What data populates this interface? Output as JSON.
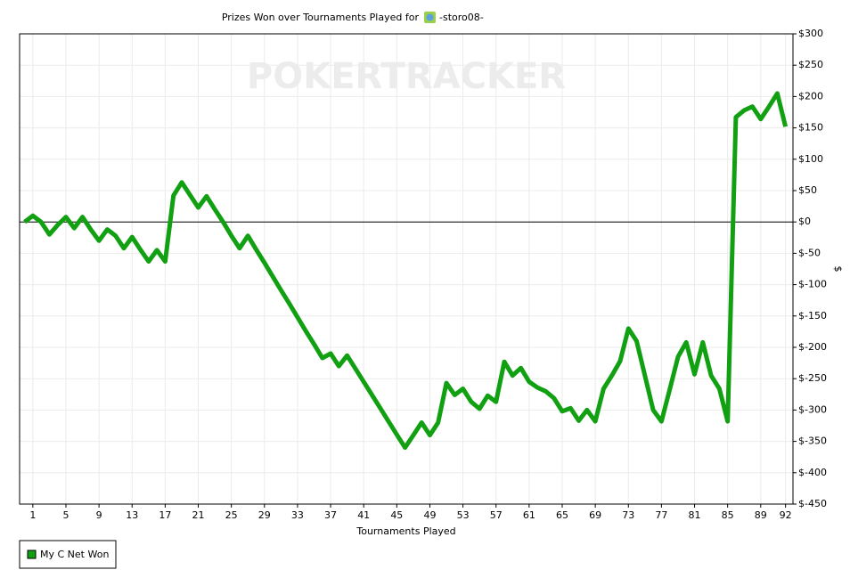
{
  "chart_data": {
    "type": "line",
    "title": "Prizes Won over Tournaments Played for",
    "player_name": "-storo08-",
    "watermark": "POKERTRACKER",
    "x_label": "Tournaments Played",
    "y_label": "$",
    "x": [
      0,
      1,
      2,
      3,
      4,
      5,
      6,
      7,
      8,
      9,
      10,
      11,
      12,
      13,
      14,
      15,
      16,
      17,
      18,
      19,
      20,
      21,
      22,
      23,
      24,
      25,
      26,
      27,
      28,
      29,
      30,
      31,
      32,
      33,
      34,
      35,
      36,
      37,
      38,
      39,
      40,
      41,
      42,
      43,
      44,
      45,
      46,
      47,
      48,
      49,
      50,
      51,
      52,
      53,
      54,
      55,
      56,
      57,
      58,
      59,
      60,
      61,
      62,
      63,
      64,
      65,
      66,
      67,
      68,
      69,
      70,
      71,
      72,
      73,
      74,
      75,
      76,
      77,
      78,
      79,
      80,
      81,
      82,
      83,
      84,
      85,
      86,
      87,
      88,
      89,
      90,
      91,
      92
    ],
    "series": [
      {
        "name": "My C Net Won",
        "color": "#11a011",
        "values": [
          0,
          10,
          0,
          -20,
          -5,
          8,
          -10,
          8,
          -12,
          -30,
          -12,
          -22,
          -42,
          -24,
          -44,
          -63,
          -45,
          -63,
          42,
          63,
          43,
          23,
          41,
          20,
          0,
          -22,
          -42,
          -22,
          -44,
          -65,
          -87,
          -109,
          -130,
          -152,
          -174,
          -195,
          -217,
          -210,
          -230,
          -213,
          -234,
          -255,
          -276,
          -297,
          -318,
          -339,
          -360,
          -340,
          -320,
          -340,
          -320,
          -257,
          -276,
          -266,
          -287,
          -298,
          -277,
          -287,
          -223,
          -245,
          -233,
          -255,
          -264,
          -270,
          -281,
          -302,
          -297,
          -317,
          -300,
          -318,
          -266,
          -245,
          -222,
          -170,
          -190,
          -245,
          -300,
          -318,
          -267,
          -215,
          -192,
          -243,
          -192,
          -245,
          -266,
          -318,
          167,
          178,
          184,
          164,
          184,
          205,
          152
        ]
      }
    ],
    "xlim": [
      -0.6,
      92.9
    ],
    "xticks": [
      1,
      5,
      9,
      13,
      17,
      21,
      25,
      29,
      33,
      37,
      41,
      45,
      49,
      53,
      57,
      61,
      65,
      69,
      73,
      77,
      81,
      85,
      89,
      92
    ],
    "ylim": [
      -450,
      300
    ],
    "yticks": [
      {
        "value": -450,
        "label": "$-450"
      },
      {
        "value": -400,
        "label": "$-400"
      },
      {
        "value": -350,
        "label": "$-350"
      },
      {
        "value": -300,
        "label": "$-300"
      },
      {
        "value": -250,
        "label": "$-250"
      },
      {
        "value": -200,
        "label": "$-200"
      },
      {
        "value": -150,
        "label": "$-150"
      },
      {
        "value": -100,
        "label": "$-100"
      },
      {
        "value": -50,
        "label": "$-50"
      },
      {
        "value": 0,
        "label": "$0"
      },
      {
        "value": 50,
        "label": "$50"
      },
      {
        "value": 100,
        "label": "$100"
      },
      {
        "value": 150,
        "label": "$150"
      },
      {
        "value": 200,
        "label": "$200"
      },
      {
        "value": 250,
        "label": "$250"
      },
      {
        "value": 300,
        "label": "$300"
      }
    ],
    "grid": true,
    "legend": "bottom-left"
  }
}
